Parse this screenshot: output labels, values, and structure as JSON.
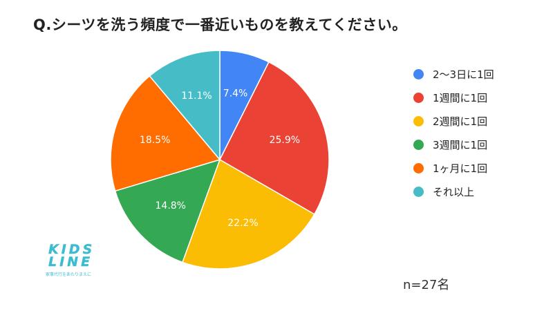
{
  "title": "Q.シーツを洗う頻度で一番近いものを教えてください。",
  "sample_size": "n=27名",
  "logo": {
    "text_main": "KIDS LINE",
    "text_sub": "家事代行をあたりまえに"
  },
  "chart_data": {
    "type": "pie",
    "title": "Q.シーツを洗う頻度で一番近いものを教えてください。",
    "legend_position": "right",
    "slices": [
      {
        "label": "2〜3日に1回",
        "value": 7.4,
        "display": "7.4%",
        "color": "#4285f4"
      },
      {
        "label": "1週間に1回",
        "value": 25.9,
        "display": "25.9%",
        "color": "#ea4335"
      },
      {
        "label": "2週間に1回",
        "value": 22.2,
        "display": "22.2%",
        "color": "#fbbc04"
      },
      {
        "label": "3週間に1回",
        "value": 14.8,
        "display": "14.8%",
        "color": "#34a853"
      },
      {
        "label": "1ヶ月に1回",
        "value": 18.5,
        "display": "18.5%",
        "color": "#ff6d01"
      },
      {
        "label": "それ以上",
        "value": 11.1,
        "display": "11.1%",
        "color": "#46bdc6"
      }
    ]
  }
}
